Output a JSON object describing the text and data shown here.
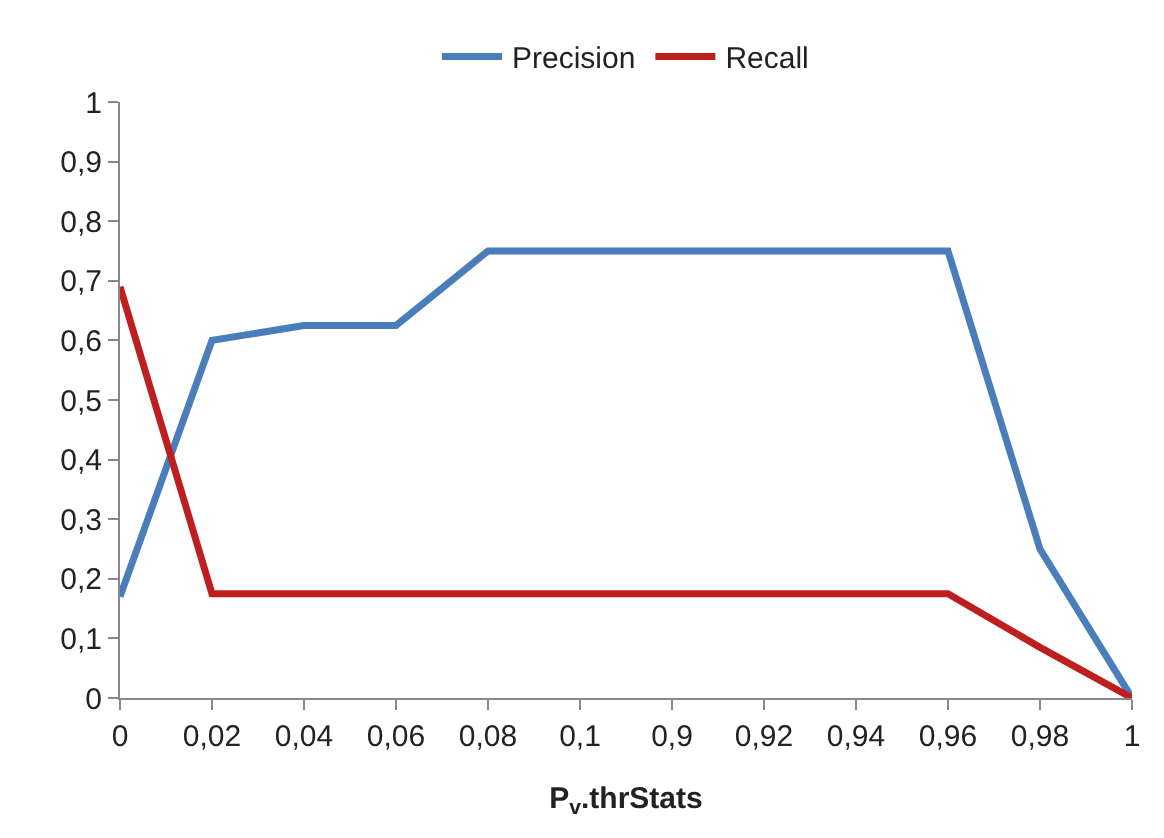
{
  "chart_data": {
    "type": "line",
    "xlabel": "P$_{v}$.thrStats",
    "categories": [
      "0",
      "0,02",
      "0,04",
      "0,06",
      "0,08",
      "0,1",
      "0,9",
      "0,92",
      "0,94",
      "0,96",
      "0,98",
      "1"
    ],
    "series": [
      {
        "name": "Precision",
        "color": "#4a7ebb",
        "values": [
          0.17,
          0.6,
          0.625,
          0.625,
          0.75,
          0.75,
          0.75,
          0.75,
          0.75,
          0.75,
          0.25,
          0
        ]
      },
      {
        "name": "Recall",
        "color": "#be1e1e",
        "values": [
          0.69,
          0.175,
          0.175,
          0.175,
          0.175,
          0.175,
          0.175,
          0.175,
          0.175,
          0.175,
          0.085,
          0
        ]
      }
    ],
    "ylim": [
      0,
      1
    ],
    "yticks": [
      {
        "value": 0,
        "label": "0"
      },
      {
        "value": 0.1,
        "label": "0,1"
      },
      {
        "value": 0.2,
        "label": "0,2"
      },
      {
        "value": 0.3,
        "label": "0,3"
      },
      {
        "value": 0.4,
        "label": "0,4"
      },
      {
        "value": 0.5,
        "label": "0,5"
      },
      {
        "value": 0.6,
        "label": "0,6"
      },
      {
        "value": 0.7,
        "label": "0,7"
      },
      {
        "value": 0.8,
        "label": "0,8"
      },
      {
        "value": 0.9,
        "label": "0,9"
      },
      {
        "value": 1,
        "label": "1"
      }
    ],
    "grid": false,
    "legend": "top",
    "marker": "none",
    "line_style": "solid"
  }
}
